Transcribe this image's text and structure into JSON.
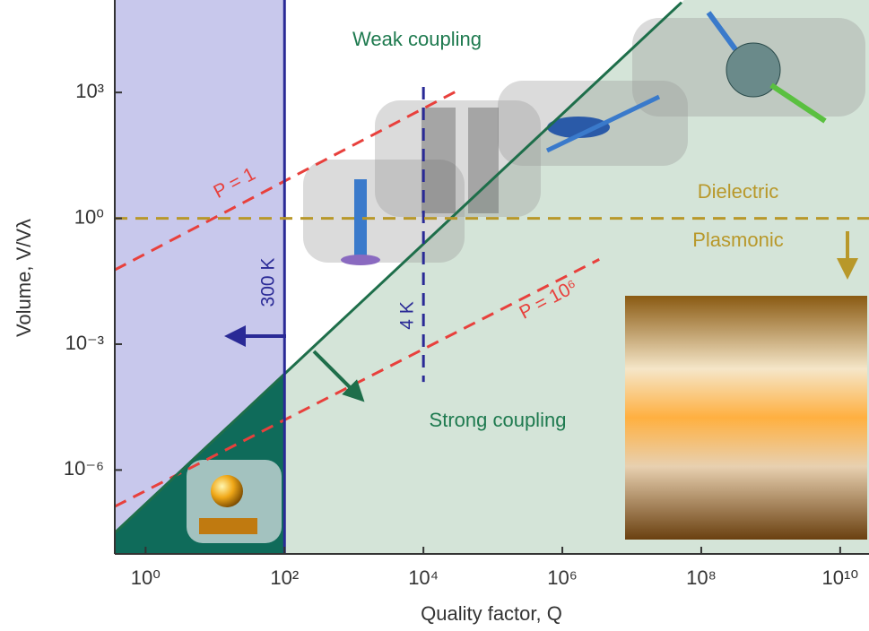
{
  "chart_data": {
    "type": "line",
    "xlabel": "Quality factor, Q",
    "ylabel": "Volume, V/Vλ",
    "xlog": true,
    "ylog": true,
    "xlim": [
      0.36,
      26000000000
    ],
    "ylim": [
      1e-08,
      160000
    ],
    "xticks": [
      {
        "value": 1,
        "label": "10⁰"
      },
      {
        "value": 100,
        "label": "10²"
      },
      {
        "value": 10000,
        "label": "10⁴"
      },
      {
        "value": 1000000,
        "label": "10⁶"
      },
      {
        "value": 100000000,
        "label": "10⁸"
      },
      {
        "value": 10000000000,
        "label": "10¹⁰"
      }
    ],
    "yticks": [
      {
        "value": 1e-06,
        "label": "10⁻⁶"
      },
      {
        "value": 0.001,
        "label": "10⁻³"
      },
      {
        "value": 1,
        "label": "10⁰"
      },
      {
        "value": 1000,
        "label": "10³"
      }
    ],
    "series": [
      {
        "name": "P = 1",
        "color": "#e8403c",
        "x": [
          0.36,
          35000
        ],
        "values": [
          0.059,
          1230
        ]
      },
      {
        "name": "P = 10⁶",
        "color": "#e8403c",
        "x": [
          0.36,
          3400000
        ],
        "values": [
          1.35e-07,
          0.105
        ]
      },
      {
        "color": "#1e6e4a",
        "x": [
          0.36,
          52000000
        ],
        "values": [
          3.2e-08,
          140000
        ]
      }
    ],
    "vlines": [
      {
        "label": "300 K",
        "x": 100,
        "color": "#2a2a96"
      },
      {
        "label": "4 K",
        "x": 10000,
        "color": "#2a2a96",
        "y": [
          1350,
          0.000126
        ]
      }
    ],
    "hline": {
      "y": 1,
      "color": "#b8982a",
      "labels": [
        "Dielectric",
        "Plasmonic"
      ]
    },
    "annotations": [
      "Weak coupling",
      "Strong coupling"
    ]
  }
}
